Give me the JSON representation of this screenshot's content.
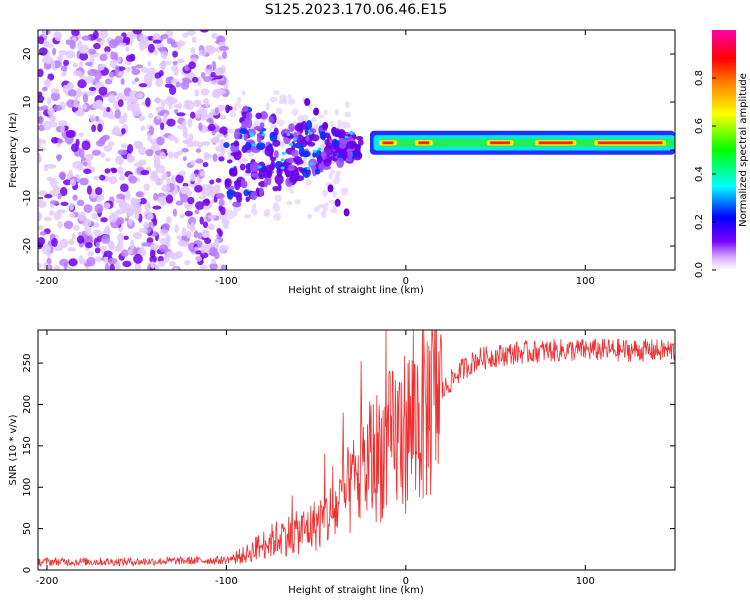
{
  "title": "S125.2023.170.06.46.E15",
  "chart_data": [
    {
      "type": "heatmap",
      "title": "S125.2023.170.06.46.E15",
      "xlabel": "Height of straight line (km)",
      "ylabel": "Frequency (Hz)",
      "xlim": [
        -205,
        150
      ],
      "ylim": [
        -25,
        25
      ],
      "xticks": [
        -200,
        -100,
        0,
        100
      ],
      "yticks": [
        -20,
        -10,
        0,
        10,
        20
      ],
      "colorbar": {
        "label": "Normalized spectral amplitude",
        "ticks": [
          "0.0",
          "0.2",
          "0.4",
          "0.6",
          "0.8"
        ],
        "range": [
          0,
          1
        ],
        "colors": [
          "#ffffff",
          "#d9b3ff",
          "#7b00ff",
          "#0000ff",
          "#00ffff",
          "#00ff00",
          "#ffff00",
          "#ff8000",
          "#ff0000",
          "#ff00aa"
        ]
      },
      "features": [
        {
          "name": "noise-field",
          "x_range": [
            -205,
            -100
          ],
          "f_range": [
            -25,
            25
          ],
          "amplitude": 0.15
        },
        {
          "name": "transition-blobs",
          "x_range": [
            -100,
            -30
          ],
          "f_range": [
            -12,
            10
          ],
          "amplitude": 0.35
        },
        {
          "name": "signal-line",
          "x_range": [
            -20,
            150
          ],
          "f_center": 1.5,
          "amplitude": 0.9
        }
      ]
    },
    {
      "type": "line",
      "xlabel": "Height of straight line (km)",
      "ylabel": "SNR (10 * v/v)",
      "xlim": [
        -205,
        150
      ],
      "ylim": [
        0,
        290
      ],
      "xticks": [
        -200,
        -100,
        0,
        100
      ],
      "yticks": [
        0,
        50,
        100,
        150,
        200,
        250
      ],
      "color": "#f03030",
      "profile": [
        [
          -205,
          10
        ],
        [
          -150,
          10
        ],
        [
          -100,
          12
        ],
        [
          -90,
          18
        ],
        [
          -80,
          30
        ],
        [
          -70,
          40
        ],
        [
          -60,
          45
        ],
        [
          -50,
          55
        ],
        [
          -40,
          70
        ],
        [
          -30,
          100
        ],
        [
          -20,
          130
        ],
        [
          -10,
          150
        ],
        [
          0,
          170
        ],
        [
          10,
          190
        ],
        [
          20,
          215
        ],
        [
          30,
          240
        ],
        [
          40,
          255
        ],
        [
          60,
          262
        ],
        [
          80,
          265
        ],
        [
          100,
          266
        ],
        [
          150,
          265
        ]
      ]
    }
  ]
}
